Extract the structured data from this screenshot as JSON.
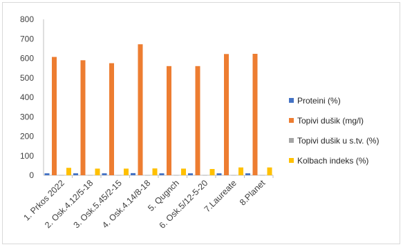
{
  "chart_data": {
    "type": "bar",
    "categories": [
      "1. Prkos 2022",
      "2. Osk.4.12/5-18",
      "3. Osk.5.45/2-15",
      "4. Osk.4.14/8-18",
      "5. Qugnch",
      "6. Osk.5/12-5-20",
      "7.Laureate",
      "8.Planet"
    ],
    "series": [
      {
        "name": "Proteini (%)",
        "color": "#4472c4",
        "values": [
          10,
          10,
          10,
          11,
          10,
          10,
          10,
          10
        ]
      },
      {
        "name": "Topivi dušik (mg/l)",
        "color": "#ed7d31",
        "values": [
          607,
          590,
          575,
          672,
          560,
          560,
          622,
          623
        ]
      },
      {
        "name": "Topivi dušik u s.tv. (%)",
        "color": "#a5a5a5",
        "values": [
          0.6,
          0.6,
          0.6,
          0.7,
          0.6,
          0.6,
          0.6,
          0.6
        ]
      },
      {
        "name": "Kolbach indeks (%)",
        "color": "#ffc000",
        "values": [
          38,
          34,
          34,
          35,
          34,
          32,
          40,
          40
        ]
      }
    ],
    "y_ticks": [
      "0",
      "100",
      "200",
      "300",
      "400",
      "500",
      "600",
      "700",
      "800"
    ],
    "ylim": [
      0,
      800
    ],
    "title": "",
    "xlabel": "",
    "ylabel": "",
    "grid": false,
    "legend_position": "right"
  }
}
